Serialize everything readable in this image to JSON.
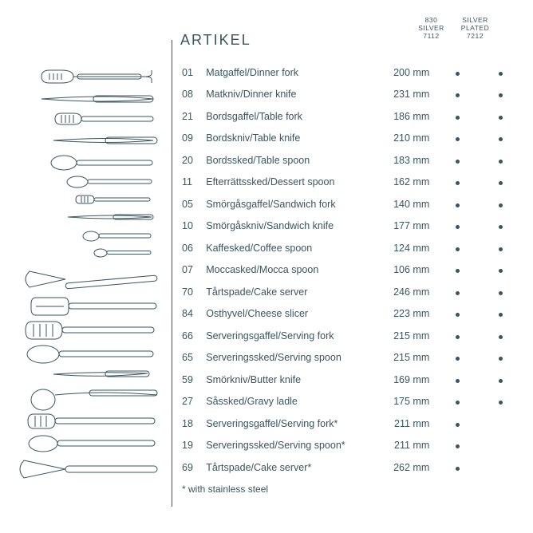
{
  "title": "ARTIKEL",
  "headers": {
    "col1": {
      "l1": "830",
      "l2": "SILVER",
      "l3": "7112"
    },
    "col2": {
      "l1": "SILVER",
      "l2": "PLATED",
      "l3": "7212"
    }
  },
  "items": [
    {
      "num": "01",
      "name": "Matgaffel/Dinner fork",
      "size": "200 mm",
      "c1": true,
      "c2": true
    },
    {
      "num": "08",
      "name": "Matkniv/Dinner knife",
      "size": "231 mm",
      "c1": true,
      "c2": true
    },
    {
      "num": "21",
      "name": "Bordsgaffel/Table fork",
      "size": "186 mm",
      "c1": true,
      "c2": true
    },
    {
      "num": "09",
      "name": "Bordskniv/Table knife",
      "size": "210 mm",
      "c1": true,
      "c2": true
    },
    {
      "num": "20",
      "name": "Bordssked/Table spoon",
      "size": "183 mm",
      "c1": true,
      "c2": true
    },
    {
      "num": "11",
      "name": "Efterrättssked/Dessert spoon",
      "size": "162 mm",
      "c1": true,
      "c2": true
    },
    {
      "num": "05",
      "name": "Smörgåsgaffel/Sandwich fork",
      "size": "140 mm",
      "c1": true,
      "c2": true
    },
    {
      "num": "10",
      "name": "Smörgåskniv/Sandwich knife",
      "size": "177 mm",
      "c1": true,
      "c2": true
    },
    {
      "num": "06",
      "name": "Kaffesked/Coffee spoon",
      "size": "124 mm",
      "c1": true,
      "c2": true
    },
    {
      "num": "07",
      "name": "Moccasked/Mocca spoon",
      "size": "106 mm",
      "c1": true,
      "c2": true
    },
    {
      "num": "70",
      "name": "Tårtspade/Cake server",
      "size": "246 mm",
      "c1": true,
      "c2": true
    },
    {
      "num": "84",
      "name": "Osthyvel/Cheese slicer",
      "size": "223 mm",
      "c1": true,
      "c2": true
    },
    {
      "num": "66",
      "name": "Serveringsgaffel/Serving fork",
      "size": "215 mm",
      "c1": true,
      "c2": true
    },
    {
      "num": "65",
      "name": "Serveringssked/Serving spoon",
      "size": "215 mm",
      "c1": true,
      "c2": true
    },
    {
      "num": "59",
      "name": "Smörkniv/Butter knife",
      "size": "169 mm",
      "c1": true,
      "c2": true
    },
    {
      "num": "27",
      "name": "Såssked/Gravy ladle",
      "size": "175 mm",
      "c1": true,
      "c2": true
    },
    {
      "num": "18",
      "name": "Serveringsgaffel/Serving fork*",
      "size": "211 mm",
      "c1": true,
      "c2": false
    },
    {
      "num": "19",
      "name": "Serveringssked/Serving spoon*",
      "size": "211 mm",
      "c1": true,
      "c2": false
    },
    {
      "num": "69",
      "name": "Tårtspade/Cake server*",
      "size": "262 mm",
      "c1": true,
      "c2": false
    }
  ],
  "footnote": "* with stainless steel",
  "colors": {
    "text": "#3a5560",
    "bg": "#ffffff"
  }
}
